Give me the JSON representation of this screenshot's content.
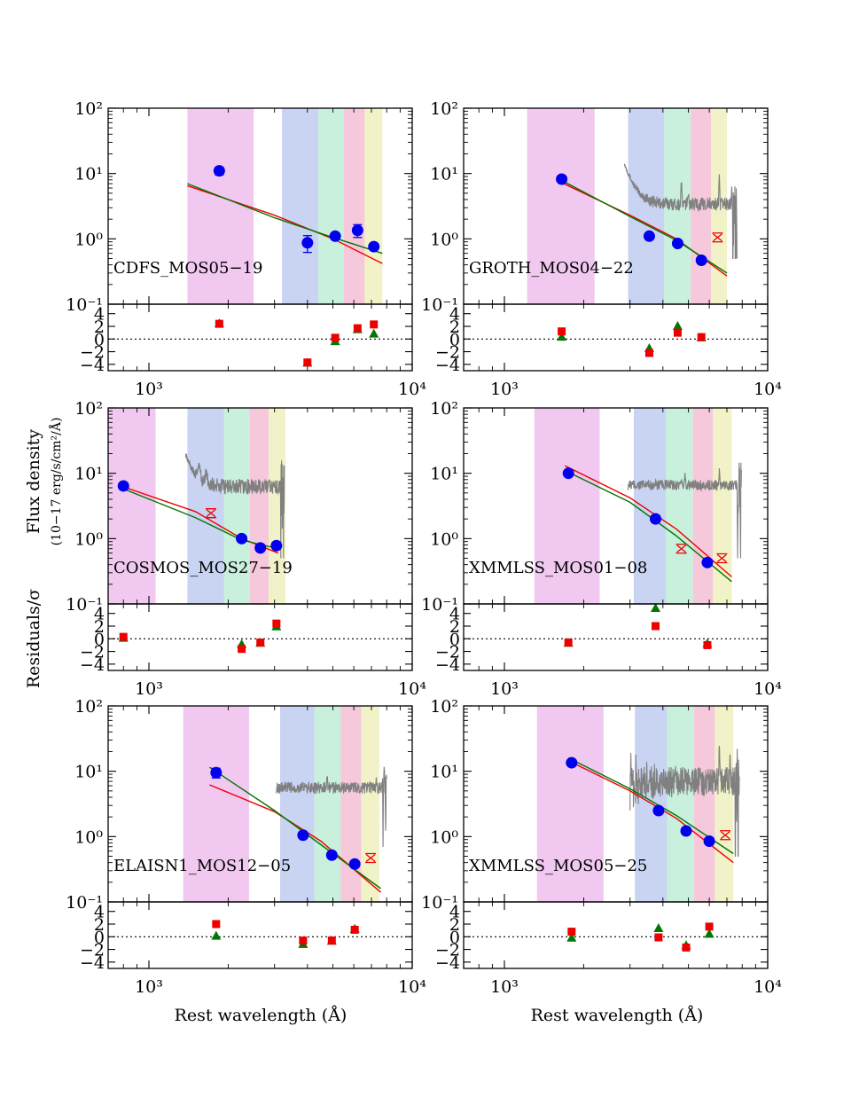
{
  "figure": {
    "ylabel_main": "Flux density",
    "ylabel_units": "(10−17 erg/s/cm²/Å)",
    "ylabel_resid": "Residuals/σ",
    "xlabel": "Rest wavelength (Å)",
    "colors": {
      "band_uv": "#f0c8f0",
      "band_blue": "#c8d4f2",
      "band_green": "#c8f0dc",
      "band_pink": "#f6c8dc",
      "band_yellow": "#f2f2c8",
      "photometry": "#0000ee",
      "fit_red": "#ee0000",
      "fit_green": "#007700",
      "spectrum": "#808080",
      "excluded": "#ee0000"
    }
  },
  "chart_data": [
    {
      "type": "scatter",
      "name": "CDFS_MOS05−19",
      "xscale": "log",
      "yscale": "log",
      "xlim": [
        700,
        10000
      ],
      "ylim": [
        0.1,
        100
      ],
      "resid_ylim": [
        -5,
        5.5
      ],
      "x_tick_labels": [
        "10³",
        "10⁴"
      ],
      "y_tick_labels": [
        "10⁻¹",
        "10⁰",
        "10¹",
        "10²"
      ],
      "resid_tick_labels": [
        "−4",
        "−2",
        "0",
        "2",
        "4"
      ],
      "bands": [
        [
          1400,
          2500
        ],
        [
          3200,
          4400
        ],
        [
          4400,
          5500
        ],
        [
          5500,
          6600
        ],
        [
          6600,
          7700
        ]
      ],
      "photometry": [
        [
          1850,
          11,
          1.5
        ],
        [
          4000,
          0.87,
          0.25
        ],
        [
          5100,
          1.1,
          0.08
        ],
        [
          6200,
          1.35,
          0.3
        ],
        [
          7150,
          0.76,
          0.05
        ]
      ],
      "excluded": [],
      "fit_red": [
        [
          1400,
          6.5
        ],
        [
          3000,
          2.3
        ],
        [
          5000,
          1.0
        ],
        [
          7700,
          0.42
        ]
      ],
      "fit_green": [
        [
          1400,
          7.0
        ],
        [
          3000,
          2.1
        ],
        [
          5000,
          1.05
        ],
        [
          7700,
          0.6
        ]
      ],
      "spectrum": null,
      "resid_red": [
        [
          1850,
          2.4
        ],
        [
          4000,
          -3.7
        ],
        [
          5100,
          0.2
        ],
        [
          6200,
          1.7
        ],
        [
          7150,
          2.3
        ]
      ],
      "resid_green": [
        [
          1850,
          2.4
        ],
        [
          4000,
          -3.8
        ],
        [
          5100,
          -0.4
        ],
        [
          6200,
          1.5
        ],
        [
          7150,
          0.8
        ]
      ]
    },
    {
      "type": "scatter",
      "name": "GROTH_MOS04−22",
      "xscale": "log",
      "yscale": "log",
      "xlim": [
        700,
        10000
      ],
      "ylim": [
        0.1,
        100
      ],
      "resid_ylim": [
        -5,
        5.5
      ],
      "x_tick_labels": [
        "10³",
        "10⁴"
      ],
      "y_tick_labels": [
        "10⁻¹",
        "10⁰",
        "10¹",
        "10²"
      ],
      "resid_tick_labels": [
        "−4",
        "−2",
        "0",
        "2",
        "4"
      ],
      "bands": [
        [
          1220,
          2200
        ],
        [
          2950,
          4050
        ],
        [
          4050,
          5100
        ],
        [
          5100,
          6100
        ],
        [
          6100,
          7000
        ]
      ],
      "photometry": [
        [
          1650,
          8.2,
          0.4
        ],
        [
          3550,
          1.1,
          0.06
        ],
        [
          4550,
          0.85,
          0.05
        ],
        [
          5600,
          0.47,
          0.03
        ]
      ],
      "excluded": [
        [
          6450,
          1.05
        ]
      ],
      "fit_red": [
        [
          1580,
          7.9
        ],
        [
          3000,
          2.3
        ],
        [
          4500,
          1.0
        ],
        [
          7000,
          0.27
        ]
      ],
      "fit_green": [
        [
          1580,
          8.6
        ],
        [
          3000,
          2.2
        ],
        [
          4500,
          0.95
        ],
        [
          7000,
          0.3
        ]
      ],
      "spectrum": {
        "x_range": [
          2850,
          7650
        ],
        "base": 3.4,
        "noise": 0.1,
        "start_bump": 11,
        "lines": [
          [
            4700,
            4
          ],
          [
            5000,
            2
          ],
          [
            6550,
            7
          ],
          [
            7300,
            3
          ]
        ]
      },
      "resid_red": [
        [
          1650,
          1.2
        ],
        [
          3550,
          -2.2
        ],
        [
          4550,
          1.0
        ],
        [
          5600,
          0.3
        ]
      ],
      "resid_green": [
        [
          1650,
          0.3
        ],
        [
          3550,
          -1.5
        ],
        [
          4550,
          2.0
        ],
        [
          5600,
          0.2
        ]
      ]
    },
    {
      "type": "scatter",
      "name": "COSMOS_MOS27−19",
      "xscale": "log",
      "yscale": "log",
      "xlim": [
        700,
        10000
      ],
      "ylim": [
        0.1,
        100
      ],
      "resid_ylim": [
        -5,
        5.5
      ],
      "x_tick_labels": [
        "10³",
        "10⁴"
      ],
      "y_tick_labels": [
        "10⁻¹",
        "10⁰",
        "10¹",
        "10²"
      ],
      "resid_tick_labels": [
        "−4",
        "−2",
        "0",
        "2",
        "4"
      ],
      "bands": [
        [
          700,
          1060
        ],
        [
          1400,
          1930
        ],
        [
          1930,
          2420
        ],
        [
          2420,
          2850
        ],
        [
          2850,
          3300
        ]
      ],
      "photometry": [
        [
          800,
          6.4,
          0.3
        ],
        [
          2250,
          1.0,
          0.05
        ],
        [
          2650,
          0.72,
          0.04
        ],
        [
          3050,
          0.78,
          0.04
        ]
      ],
      "excluded": [
        [
          1720,
          2.45
        ]
      ],
      "fit_red": [
        [
          780,
          6.4
        ],
        [
          1500,
          2.6
        ],
        [
          2250,
          1.0
        ],
        [
          3100,
          0.6
        ]
      ],
      "fit_green": [
        [
          780,
          6.0
        ],
        [
          1500,
          2.1
        ],
        [
          2250,
          0.95
        ],
        [
          3100,
          0.7
        ]
      ],
      "spectrum": {
        "x_range": [
          1380,
          3270
        ],
        "base": 6.2,
        "noise": 0.12,
        "start_bump": 13,
        "lines": [
          [
            1550,
            5
          ],
          [
            1650,
            3
          ]
        ]
      },
      "resid_red": [
        [
          800,
          0.3
        ],
        [
          2250,
          -1.6
        ],
        [
          2650,
          -0.6
        ],
        [
          3050,
          2.4
        ]
      ],
      "resid_green": [
        [
          800,
          0.1
        ],
        [
          2250,
          -0.9
        ],
        [
          2650,
          -0.7
        ],
        [
          3050,
          1.9
        ]
      ]
    },
    {
      "type": "scatter",
      "name": "XMMLSS_MOS01−08",
      "xscale": "log",
      "yscale": "log",
      "xlim": [
        700,
        10000
      ],
      "ylim": [
        0.1,
        100
      ],
      "resid_ylim": [
        -5,
        5.5
      ],
      "x_tick_labels": [
        "10³",
        "10⁴"
      ],
      "y_tick_labels": [
        "10⁻¹",
        "10⁰",
        "10¹",
        "10²"
      ],
      "resid_tick_labels": [
        "−4",
        "−2",
        "0",
        "2",
        "4"
      ],
      "bands": [
        [
          1300,
          2300
        ],
        [
          3100,
          4100
        ],
        [
          4100,
          5200
        ],
        [
          5200,
          6200
        ],
        [
          6200,
          7300
        ]
      ],
      "photometry": [
        [
          1750,
          10,
          0.5
        ],
        [
          3750,
          2.0,
          0.1
        ],
        [
          5900,
          0.43,
          0.03
        ]
      ],
      "excluded": [
        [
          4700,
          0.7
        ],
        [
          6700,
          0.5
        ]
      ],
      "fit_red": [
        [
          1700,
          13
        ],
        [
          3000,
          4.2
        ],
        [
          4500,
          1.4
        ],
        [
          7300,
          0.26
        ]
      ],
      "fit_green": [
        [
          1700,
          11
        ],
        [
          3000,
          3.6
        ],
        [
          4500,
          1.1
        ],
        [
          7300,
          0.22
        ]
      ],
      "spectrum": {
        "x_range": [
          2950,
          7950
        ],
        "base": 6.6,
        "noise": 0.08,
        "start_bump": 0,
        "lines": [
          [
            4850,
            3
          ],
          [
            6560,
            5
          ]
        ]
      },
      "resid_red": [
        [
          1750,
          -0.6
        ],
        [
          3750,
          2.0
        ],
        [
          5900,
          -1.0
        ]
      ],
      "resid_green": [
        [
          1750,
          -0.7
        ],
        [
          3750,
          4.8
        ],
        [
          5900,
          -0.8
        ]
      ]
    },
    {
      "type": "scatter",
      "name": "ELAISN1_MOS12−05",
      "xscale": "log",
      "yscale": "log",
      "xlim": [
        700,
        10000
      ],
      "ylim": [
        0.1,
        100
      ],
      "resid_ylim": [
        -5,
        5.5
      ],
      "x_tick_labels": [
        "10³",
        "10⁴"
      ],
      "y_tick_labels": [
        "10⁻¹",
        "10⁰",
        "10¹",
        "10²"
      ],
      "resid_tick_labels": [
        "−4",
        "−2",
        "0",
        "2",
        "4"
      ],
      "bands": [
        [
          1350,
          2400
        ],
        [
          3150,
          4250
        ],
        [
          4250,
          5350
        ],
        [
          5350,
          6400
        ],
        [
          6400,
          7500
        ]
      ],
      "photometry": [
        [
          1800,
          9.5,
          1.6
        ],
        [
          3850,
          1.05,
          0.05
        ],
        [
          4950,
          0.52,
          0.04
        ],
        [
          6050,
          0.38,
          0.03
        ]
      ],
      "excluded": [
        [
          6950,
          0.47
        ]
      ],
      "fit_red": [
        [
          1700,
          6.2
        ],
        [
          3000,
          2.4
        ],
        [
          4500,
          0.85
        ],
        [
          7600,
          0.14
        ]
      ],
      "fit_green": [
        [
          1700,
          11.5
        ],
        [
          3000,
          2.5
        ],
        [
          4500,
          0.75
        ],
        [
          7600,
          0.16
        ]
      ],
      "spectrum": {
        "x_range": [
          3050,
          8000
        ],
        "base": 5.6,
        "noise": 0.09,
        "start_bump": 0,
        "lines": [
          [
            4750,
            2
          ],
          [
            7300,
            3
          ]
        ]
      },
      "resid_red": [
        [
          1800,
          2.0
        ],
        [
          3850,
          -0.6
        ],
        [
          4950,
          -0.6
        ],
        [
          6050,
          1.1
        ]
      ],
      "resid_green": [
        [
          1800,
          0.1
        ],
        [
          3850,
          -1.2
        ],
        [
          4950,
          -0.7
        ],
        [
          6050,
          1.2
        ]
      ]
    },
    {
      "type": "scatter",
      "name": "XMMLSS_MOS05−25",
      "xscale": "log",
      "yscale": "log",
      "xlim": [
        700,
        10000
      ],
      "ylim": [
        0.1,
        100
      ],
      "resid_ylim": [
        -5,
        5.5
      ],
      "x_tick_labels": [
        "10³",
        "10⁴"
      ],
      "y_tick_labels": [
        "10⁻¹",
        "10⁰",
        "10¹",
        "10²"
      ],
      "resid_tick_labels": [
        "−4",
        "−2",
        "0",
        "2",
        "4"
      ],
      "bands": [
        [
          1330,
          2380
        ],
        [
          3130,
          4150
        ],
        [
          4150,
          5250
        ],
        [
          5250,
          6300
        ],
        [
          6300,
          7400
        ]
      ],
      "photometry": [
        [
          1800,
          13.5,
          0.6
        ],
        [
          3850,
          2.5,
          0.12
        ],
        [
          4900,
          1.22,
          0.07
        ],
        [
          6000,
          0.85,
          0.05
        ]
      ],
      "excluded": [
        [
          6900,
          1.05
        ]
      ],
      "fit_red": [
        [
          1750,
          14.5
        ],
        [
          3000,
          5.0
        ],
        [
          4500,
          1.9
        ],
        [
          7400,
          0.4
        ]
      ],
      "fit_green": [
        [
          1750,
          16
        ],
        [
          3000,
          5.4
        ],
        [
          4500,
          2.1
        ],
        [
          7400,
          0.55
        ]
      ],
      "spectrum": {
        "x_range": [
          3000,
          7800
        ],
        "base": 7.0,
        "noise": 0.22,
        "start_bump": -3,
        "lines": [
          [
            6550,
            20
          ],
          [
            7200,
            10
          ]
        ]
      },
      "resid_red": [
        [
          1800,
          0.8
        ],
        [
          3850,
          -0.1
        ],
        [
          4900,
          -1.7
        ],
        [
          6000,
          1.6
        ]
      ],
      "resid_green": [
        [
          1800,
          -0.2
        ],
        [
          3850,
          1.3
        ],
        [
          4900,
          -1.4
        ],
        [
          6000,
          0.4
        ]
      ]
    }
  ]
}
